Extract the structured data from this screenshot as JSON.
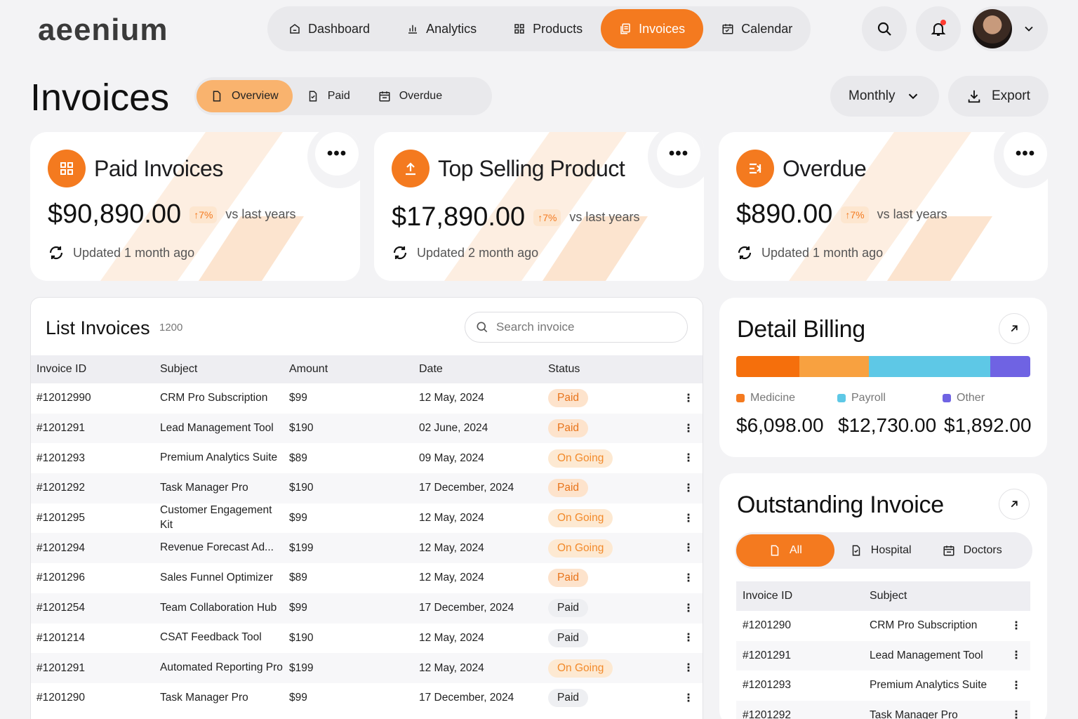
{
  "brand": {
    "logo_text": "aeenium"
  },
  "nav": {
    "items": [
      {
        "label": "Dashboard",
        "icon": "home-icon"
      },
      {
        "label": "Analytics",
        "icon": "bar-chart-icon"
      },
      {
        "label": "Products",
        "icon": "grid-icon"
      },
      {
        "label": "Invoices",
        "icon": "invoice-icon",
        "active": true
      },
      {
        "label": "Calendar",
        "icon": "calendar-icon"
      }
    ]
  },
  "page": {
    "title": "Invoices",
    "tabs": [
      {
        "label": "Overview",
        "active": true
      },
      {
        "label": "Paid"
      },
      {
        "label": "Overdue"
      }
    ],
    "period": "Monthly",
    "export_label": "Export"
  },
  "cards": [
    {
      "title": "Paid Invoices",
      "amount": "$90,890.00",
      "change": "↑7%",
      "vs": "vs last years",
      "updated": "Updated 1 month ago",
      "icon": "grid-icon"
    },
    {
      "title": "Top Selling Product",
      "amount": "$17,890.00",
      "change": "↑7%",
      "vs": "vs last years",
      "updated": "Updated 2 month ago",
      "icon": "upload-icon"
    },
    {
      "title": "Overdue",
      "amount": "$890.00",
      "change": "↑7%",
      "vs": "vs last years",
      "updated": "Updated 1 month ago",
      "icon": "overdue-icon"
    }
  ],
  "list": {
    "title": "List Invoices",
    "count": "1200",
    "search_placeholder": "Search invoice",
    "columns": [
      "Invoice ID",
      "Subject",
      "Amount",
      "Date",
      "Status"
    ],
    "rows": [
      {
        "id": "#12012990",
        "subject": "CRM Pro Subscription",
        "amount": "$99",
        "date": "12 May, 2024",
        "status": "Paid"
      },
      {
        "id": "#1201291",
        "subject": "Lead Management Tool",
        "amount": "$190",
        "date": "02 June, 2024",
        "status": "Paid"
      },
      {
        "id": "#1201293",
        "subject": "Premium Analytics Suite",
        "amount": "$89",
        "date": "09 May, 2024",
        "status": "On Going"
      },
      {
        "id": "#1201292",
        "subject": "Task Manager Pro",
        "amount": "$190",
        "date": "17 December, 2024",
        "status": "Paid"
      },
      {
        "id": "#1201295",
        "subject": "Customer Engagement Kit",
        "amount": "$99",
        "date": "12 May, 2024",
        "status": "On Going"
      },
      {
        "id": "#1201294",
        "subject": "Revenue Forecast Ad...",
        "amount": "$199",
        "date": "12 May, 2024",
        "status": "On Going"
      },
      {
        "id": "#1201296",
        "subject": "Sales Funnel Optimizer",
        "amount": "$89",
        "date": "12 May, 2024",
        "status": "Paid"
      },
      {
        "id": "#1201254",
        "subject": "Team Collaboration Hub",
        "amount": "$99",
        "date": "17 December, 2024",
        "status": "Paid",
        "status_style": "neutral"
      },
      {
        "id": "#1201214",
        "subject": "CSAT Feedback Tool",
        "amount": "$190",
        "date": "12 May, 2024",
        "status": "Paid",
        "status_style": "neutral"
      },
      {
        "id": "#1201291",
        "subject": "Automated Reporting Pro",
        "amount": "$199",
        "date": "12 May, 2024",
        "status": "On Going"
      },
      {
        "id": "#1201290",
        "subject": "Task Manager Pro",
        "amount": "$99",
        "date": "17 December, 2024",
        "status": "Paid",
        "status_style": "neutral"
      }
    ]
  },
  "billing": {
    "title": "Detail Billing",
    "bar_shares": [
      {
        "share": 0.215,
        "color": "#f56f0c"
      },
      {
        "share": 0.235,
        "color": "#f8a140"
      },
      {
        "share": 0.415,
        "color": "#5ec8e6"
      },
      {
        "share": 0.135,
        "color": "#6f63e3"
      }
    ],
    "legend": [
      {
        "label": "Medicine",
        "amount": "$6,098.00",
        "color": "#f47a1f"
      },
      {
        "label": "Payroll",
        "amount": "$12,730.00",
        "color": "#5ec8e6"
      },
      {
        "label": "Other",
        "amount": "$1,892.00",
        "color": "#6f63e3"
      }
    ]
  },
  "outstanding": {
    "title": "Outstanding Invoice",
    "tabs": [
      {
        "label": "All",
        "active": true
      },
      {
        "label": "Hospital"
      },
      {
        "label": "Doctors"
      }
    ],
    "columns": [
      "Invoice ID",
      "Subject"
    ],
    "rows": [
      {
        "id": "#1201290",
        "subject": "CRM Pro Subscription"
      },
      {
        "id": "#1201291",
        "subject": "Lead Management Tool"
      },
      {
        "id": "#1201293",
        "subject": "Premium Analytics Suite"
      },
      {
        "id": "#1201292",
        "subject": "Task Manager Pro"
      }
    ]
  },
  "colors": {
    "accent": "#f47a1f",
    "paid_bg": "#fde3cc",
    "paid_fg": "#e8741b",
    "ongoing_bg": "#fde9d2",
    "ongoing_fg": "#f28a2a",
    "neutral_bg": "#eeeff2",
    "neutral_fg": "#222222"
  }
}
